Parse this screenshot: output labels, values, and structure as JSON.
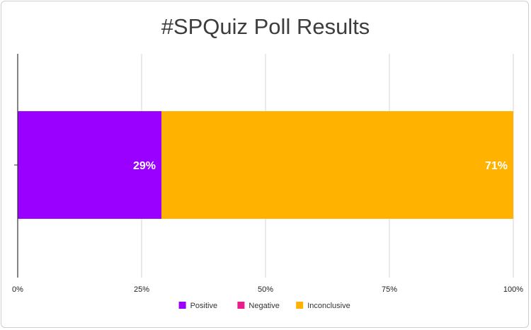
{
  "chart_data": {
    "type": "bar",
    "orientation": "horizontal",
    "stacked": true,
    "title": "#SPQuiz Poll Results",
    "categories": [
      ""
    ],
    "series": [
      {
        "name": "Positive",
        "values": [
          29
        ],
        "color": "#9900ff",
        "label": "29%"
      },
      {
        "name": "Negative",
        "values": [
          0
        ],
        "color": "#e91e8c",
        "label": ""
      },
      {
        "name": "Inconclusive",
        "values": [
          71
        ],
        "color": "#ffb300",
        "label": "71%"
      }
    ],
    "xlim": [
      0,
      100
    ],
    "x_ticks": [
      "0%",
      "25%",
      "50%",
      "75%",
      "100%"
    ],
    "grid": true,
    "legend_position": "bottom"
  }
}
